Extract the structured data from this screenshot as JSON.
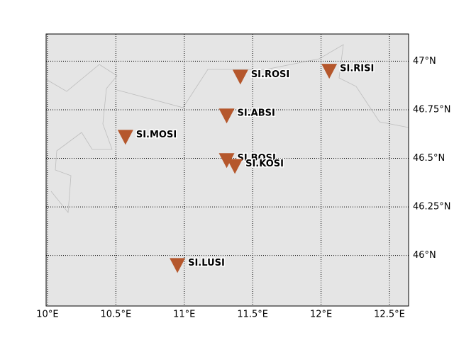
{
  "map": {
    "xlim": [
      9.99,
      12.64
    ],
    "ylim": [
      45.74,
      47.14
    ],
    "xticks": [
      {
        "value": 10,
        "label": "10°E"
      },
      {
        "value": 10.5,
        "label": "10.5°E"
      },
      {
        "value": 11,
        "label": "11°E"
      },
      {
        "value": 11.5,
        "label": "11.5°E"
      },
      {
        "value": 12,
        "label": "12°E"
      },
      {
        "value": 12.5,
        "label": "12.5°E"
      }
    ],
    "yticks": [
      {
        "value": 46,
        "label": "46°N"
      },
      {
        "value": 46.25,
        "label": "46.25°N"
      },
      {
        "value": 46.5,
        "label": "46.5°N"
      },
      {
        "value": 46.75,
        "label": "46.75°N"
      },
      {
        "value": 47,
        "label": "47°N"
      }
    ],
    "grid": true,
    "marker_color": "#b5572c",
    "stations": [
      {
        "name": "SI.ROSI",
        "lon": 11.41,
        "lat": 46.92
      },
      {
        "name": "SI.RISI",
        "lon": 12.06,
        "lat": 46.95
      },
      {
        "name": "SI.ABSI",
        "lon": 11.31,
        "lat": 46.72
      },
      {
        "name": "SI.MOSI",
        "lon": 10.57,
        "lat": 46.61
      },
      {
        "name": "SI.BOSI",
        "lon": 11.31,
        "lat": 46.49
      },
      {
        "name": "SI.KOSI",
        "lon": 11.37,
        "lat": 46.46
      },
      {
        "name": "SI.LUSI",
        "lon": 10.95,
        "lat": 45.95
      }
    ]
  }
}
